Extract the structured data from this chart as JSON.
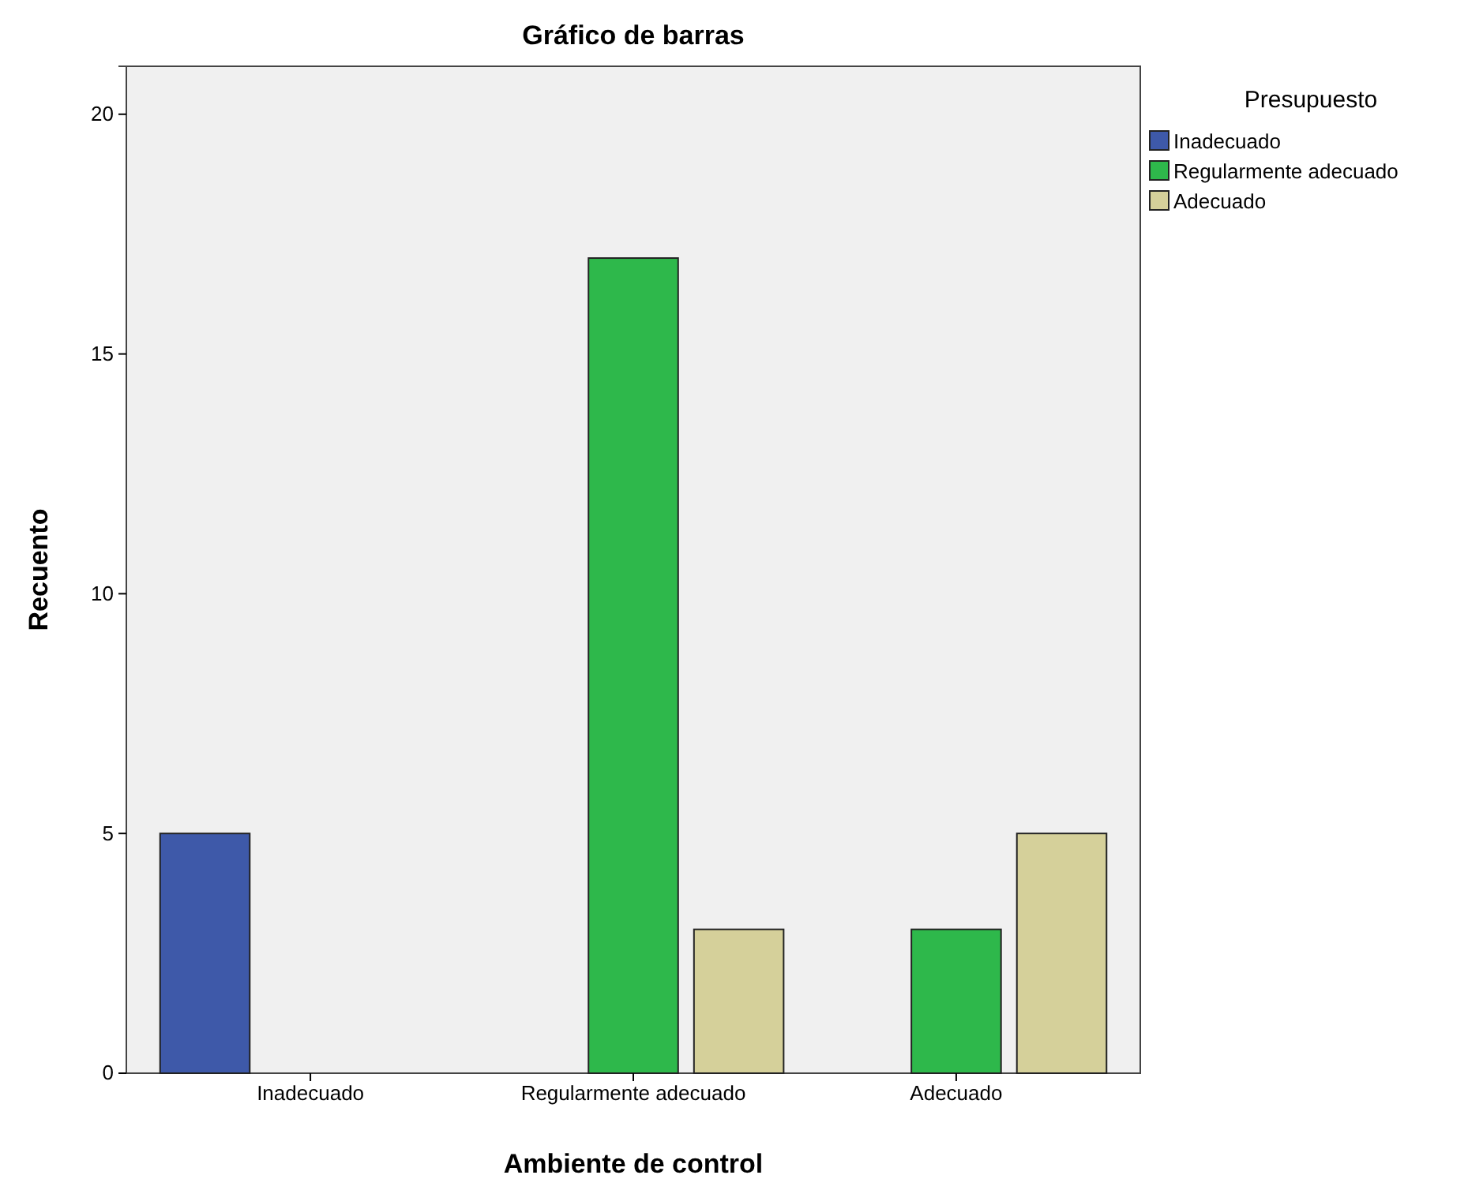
{
  "chart_data": {
    "type": "bar",
    "title": "Gráfico de barras",
    "xlabel": "Ambiente de control",
    "ylabel": "Recuento",
    "legend_title": "Presupuesto",
    "categories": [
      "Inadecuado",
      "Regularmente adecuado",
      "Adecuado"
    ],
    "series": [
      {
        "name": "Inadecuado",
        "color": "#3e59a9",
        "values": [
          5,
          null,
          null
        ]
      },
      {
        "name": "Regularmente adecuado",
        "color": "#2eb84b",
        "values": [
          null,
          17,
          3
        ]
      },
      {
        "name": "Adecuado",
        "color": "#d5d09a",
        "values": [
          null,
          3,
          5
        ]
      }
    ],
    "ylim": [
      0,
      21
    ],
    "yticks": [
      0,
      5,
      10,
      15,
      20
    ],
    "grid": false,
    "legend": "right"
  }
}
